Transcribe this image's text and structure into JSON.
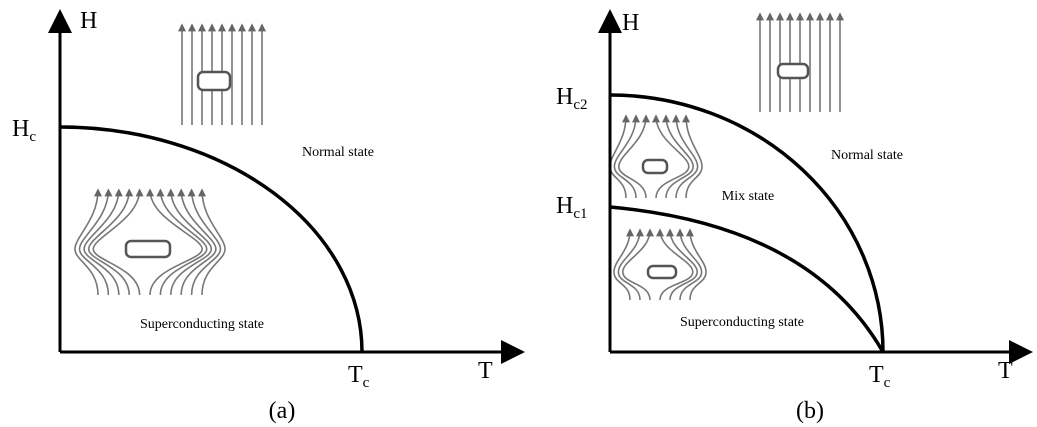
{
  "panels": [
    {
      "caption": "(a)",
      "y_axis": "H",
      "x_axis": "T",
      "field_labels": [
        {
          "symbol": "H",
          "subscript": "c"
        }
      ],
      "temperature_label": {
        "symbol": "T",
        "subscript": "c"
      },
      "regions": [
        "Normal state",
        "Superconducting state"
      ]
    },
    {
      "caption": "(b)",
      "y_axis": "H",
      "x_axis": "T",
      "field_labels": [
        {
          "symbol": "H",
          "subscript": "c2"
        },
        {
          "symbol": "H",
          "subscript": "c1"
        }
      ],
      "temperature_label": {
        "symbol": "T",
        "subscript": "c"
      },
      "regions": [
        "Normal state",
        "Mix state",
        "Superconducting state"
      ]
    }
  ]
}
